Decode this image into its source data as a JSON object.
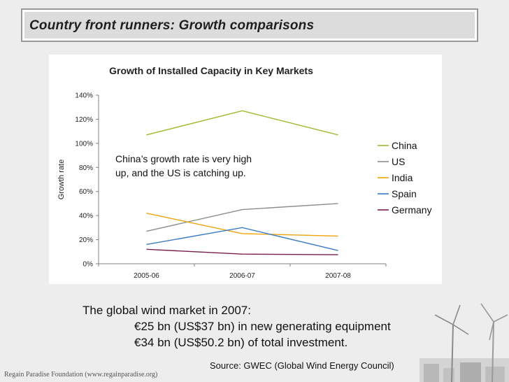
{
  "slide": {
    "title": "Country front runners: Growth comparisons",
    "info_line1": "The global wind market in 2007:",
    "info_line2": "€25 bn (US$37 bn) in new generating equipment",
    "info_line3": "€34 bn (US$50.2 bn) of total investment.",
    "source": "Source:  GWEC (Global Wind Energy Council)",
    "footer": "Regain Paradise Foundation (www.regainparadise.org)"
  },
  "chart_data": {
    "type": "line",
    "title": "Growth of Installed Capacity in Key Markets",
    "xlabel": "",
    "ylabel": "Growth rate",
    "categories": [
      "2005-06",
      "2006-07",
      "2007-08"
    ],
    "ylim": [
      0,
      140
    ],
    "yticks": [
      "0%",
      "20%",
      "40%",
      "60%",
      "80%",
      "100%",
      "120%",
      "140%"
    ],
    "annotation": [
      "China’s growth rate is very high",
      "up, and the US is catching up."
    ],
    "legend_position": "right",
    "series": [
      {
        "name": "China",
        "values": [
          107,
          127,
          107
        ],
        "color": "#9bbb2e"
      },
      {
        "name": "US",
        "values": [
          27,
          45,
          50
        ],
        "color": "#8c8c8c"
      },
      {
        "name": "India",
        "values": [
          42,
          25,
          23
        ],
        "color": "#f0a30a"
      },
      {
        "name": "Spain",
        "values": [
          16,
          30,
          11
        ],
        "color": "#3a7cc4"
      },
      {
        "name": "Germany",
        "values": [
          12,
          8,
          7.5
        ],
        "color": "#7b1f4b"
      }
    ]
  }
}
